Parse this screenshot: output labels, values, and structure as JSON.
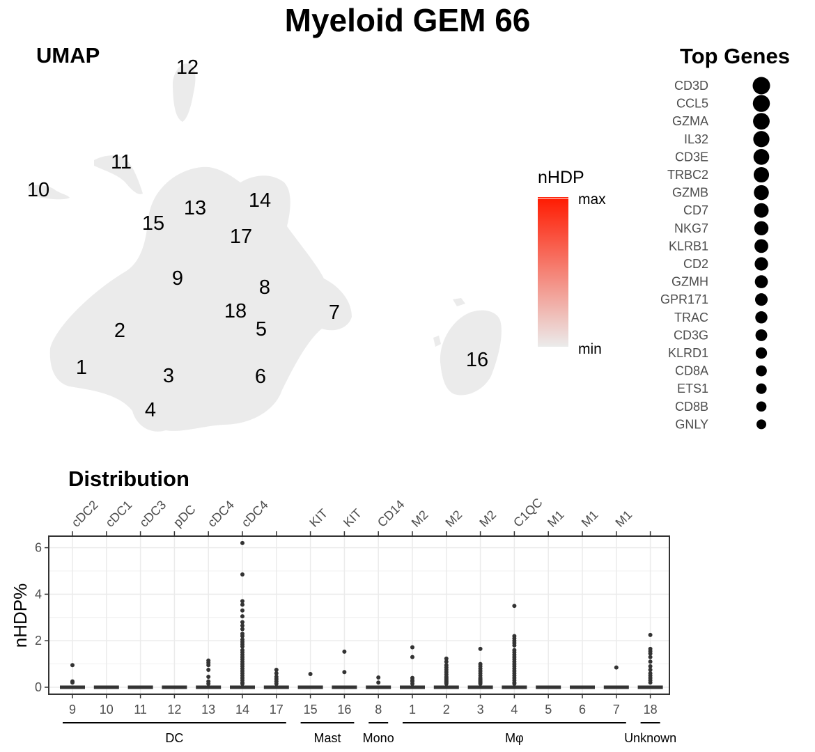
{
  "title": "Myeloid GEM 66",
  "umap": {
    "title": "UMAP",
    "cluster_labels": [
      "12",
      "11",
      "10",
      "13",
      "14",
      "15",
      "17",
      "9",
      "8",
      "18",
      "7",
      "2",
      "5",
      "1",
      "3",
      "6",
      "16",
      "4"
    ]
  },
  "legend": {
    "title": "nHDP",
    "max_label": "max",
    "min_label": "min",
    "color_high": "#ff1a00",
    "color_low": "#ebebeb"
  },
  "top_genes": {
    "title": "Top Genes",
    "genes": [
      "CD3D",
      "CCL5",
      "GZMA",
      "IL32",
      "CD3E",
      "TRBC2",
      "GZMB",
      "CD7",
      "NKG7",
      "KLRB1",
      "CD2",
      "GZMH",
      "GPR171",
      "TRAC",
      "CD3G",
      "KLRD1",
      "CD8A",
      "ETS1",
      "CD8B",
      "GNLY"
    ]
  },
  "chart_data": {
    "type": "box",
    "title": "Distribution",
    "ylabel": "nHDP%",
    "ylim": [
      0,
      6.5
    ],
    "yticks": [
      0,
      2,
      4,
      6
    ],
    "categories": [
      "9",
      "10",
      "11",
      "12",
      "13",
      "14",
      "17",
      "15",
      "16",
      "8",
      "1",
      "2",
      "3",
      "4",
      "5",
      "6",
      "7",
      "18"
    ],
    "top_labels": [
      "cDC2",
      "cDC1",
      "cDC3",
      "pDC",
      "cDC4",
      "cDC4",
      "",
      "KIT",
      "KIT",
      "CD14",
      "M2",
      "M2",
      "M2",
      "C1QC",
      "M1",
      "M1",
      "M1",
      ""
    ],
    "groups": [
      {
        "name": "DC",
        "members": [
          "9",
          "10",
          "11",
          "12",
          "13",
          "14",
          "17"
        ]
      },
      {
        "name": "Mast",
        "members": [
          "15",
          "16"
        ]
      },
      {
        "name": "Mono",
        "members": [
          "8"
        ]
      },
      {
        "name": "Mφ",
        "members": [
          "1",
          "2",
          "3",
          "4",
          "5",
          "6",
          "7"
        ]
      },
      {
        "name": "Unknown",
        "members": [
          "18"
        ]
      }
    ],
    "outliers": {
      "9": [
        0.95,
        0.25,
        0.2
      ],
      "13": [
        1.15,
        1.05,
        0.95,
        0.75,
        0.45,
        0.25,
        0.15
      ],
      "14": [
        6.2,
        4.85,
        3.7,
        3.55,
        3.3,
        3.05,
        2.8,
        2.65,
        2.5,
        2.3,
        2.2,
        2.05,
        1.95,
        1.85,
        1.75,
        1.6,
        1.5,
        1.4,
        1.3,
        1.2,
        1.1,
        1.0,
        0.9,
        0.8,
        0.7,
        0.6,
        0.5,
        0.4,
        0.3,
        0.2,
        0.15
      ],
      "17": [
        0.75,
        0.6,
        0.45,
        0.35,
        0.25,
        0.15
      ],
      "15": [
        0.57
      ],
      "16": [
        1.53,
        0.65
      ],
      "8": [
        0.42,
        0.2
      ],
      "1": [
        1.72,
        1.3,
        0.4,
        0.3,
        0.25,
        0.15
      ],
      "2": [
        1.23,
        1.1,
        0.95,
        0.85,
        0.75,
        0.65,
        0.55,
        0.45,
        0.4,
        0.35,
        0.3,
        0.25,
        0.2,
        0.15
      ],
      "3": [
        1.65,
        1.0,
        0.9,
        0.8,
        0.7,
        0.6,
        0.5,
        0.4,
        0.35,
        0.3,
        0.25,
        0.2,
        0.15
      ],
      "4": [
        3.5,
        2.2,
        2.1,
        2.0,
        1.9,
        1.8,
        1.6,
        1.5,
        1.4,
        1.3,
        1.2,
        1.1,
        1.0,
        0.9,
        0.8,
        0.7,
        0.6,
        0.5,
        0.4,
        0.3,
        0.2,
        0.15
      ],
      "7": [
        0.85
      ],
      "18": [
        2.25,
        1.65,
        1.55,
        1.45,
        1.3,
        1.1,
        0.9,
        0.75,
        0.6,
        0.5,
        0.4,
        0.3,
        0.2
      ]
    }
  }
}
